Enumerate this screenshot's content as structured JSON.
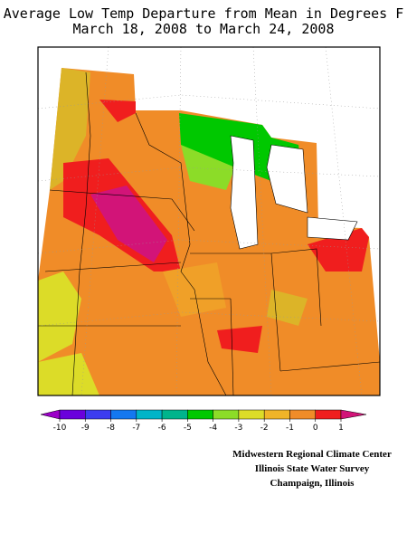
{
  "header": {
    "title": "Average Low Temp Departure from Mean in Degrees F",
    "subtitle": "March 18, 2008 to March 24, 2008"
  },
  "colorbar": {
    "ticks": [
      -10,
      -9,
      -8,
      -7,
      -6,
      -5,
      -4,
      -3,
      -2,
      -1,
      0,
      1
    ],
    "colors": [
      "#9c00c8",
      "#6a00dc",
      "#3c3cf0",
      "#1478f0",
      "#00b4c8",
      "#00b48c",
      "#00c800",
      "#8cdc28",
      "#dcdc28",
      "#f0b428",
      "#f08c28",
      "#f01e1e",
      "#d21478"
    ]
  },
  "credits": [
    "Midwestern Regional Climate Center",
    "Illinois State Water Survey",
    "Champaign, Illinois"
  ]
}
